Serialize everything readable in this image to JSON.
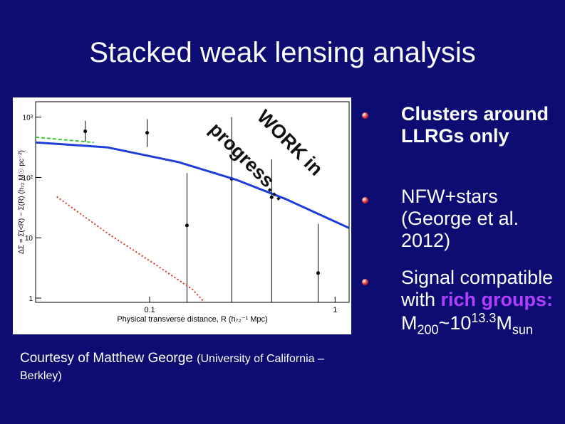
{
  "title": "Stacked weak lensing analysis",
  "watermark": [
    "WORK in",
    "progress…"
  ],
  "caption": {
    "main": "Courtesy of Matthew George",
    "affiliation": "(University of California – Berkley)"
  },
  "bullets": [
    {
      "text": "Clusters around LLRGs only"
    },
    {
      "text": "NFW+stars (George et al. 2012)"
    },
    {
      "text": "Signal compatible with",
      "highlight": "rich groups:",
      "formula": [
        "M",
        "200",
        "~10",
        "13.3",
        "M",
        "sun"
      ]
    }
  ],
  "chart_data": {
    "type": "scatter",
    "x_label": "Physical transverse distance,  R (h₇₂⁻¹ Mpc)",
    "y_label": "ΔΣ = Σ̄(<R) − Σ(R)  (h₇₂ M☉ pc⁻²)",
    "xscale": "log",
    "yscale": "log",
    "xlim": [
      0.0243,
      1.19
    ],
    "ylim": [
      0.85,
      1800
    ],
    "xticks": [
      0.1,
      1
    ],
    "yticks": [
      {
        "value": 1000,
        "label": "10³"
      },
      {
        "value": 100,
        "label": "10²"
      },
      10,
      1
    ],
    "series": [
      {
        "style": "points",
        "color": "#000000",
        "x": [
          0.045,
          0.097,
          0.159,
          0.277,
          0.455,
          0.81
        ],
        "values": [
          582,
          550,
          16,
          95,
          47,
          2.6
        ],
        "err_low": [
          390,
          320,
          0.5,
          0.5,
          0.5,
          0.74
        ],
        "err_high": [
          870,
          925,
          118,
          1000,
          200,
          17
        ]
      },
      {
        "style": "solid",
        "color": "#1f3ed8",
        "x": [
          0.0243,
          0.059,
          0.143,
          0.292,
          0.54,
          1.19
        ],
        "values": [
          380,
          316,
          180,
          92,
          44,
          14.5
        ]
      },
      {
        "style": "dashed",
        "color": "#33cc33",
        "x": [
          0.0243,
          0.035,
          0.05
        ],
        "values": [
          465,
          420,
          380
        ]
      },
      {
        "style": "dotted",
        "color": "#e0301e",
        "x": [
          0.0316,
          0.059,
          0.109,
          0.17,
          0.22
        ],
        "values": [
          48,
          12,
          3.5,
          1.4,
          0.6
        ]
      }
    ]
  }
}
